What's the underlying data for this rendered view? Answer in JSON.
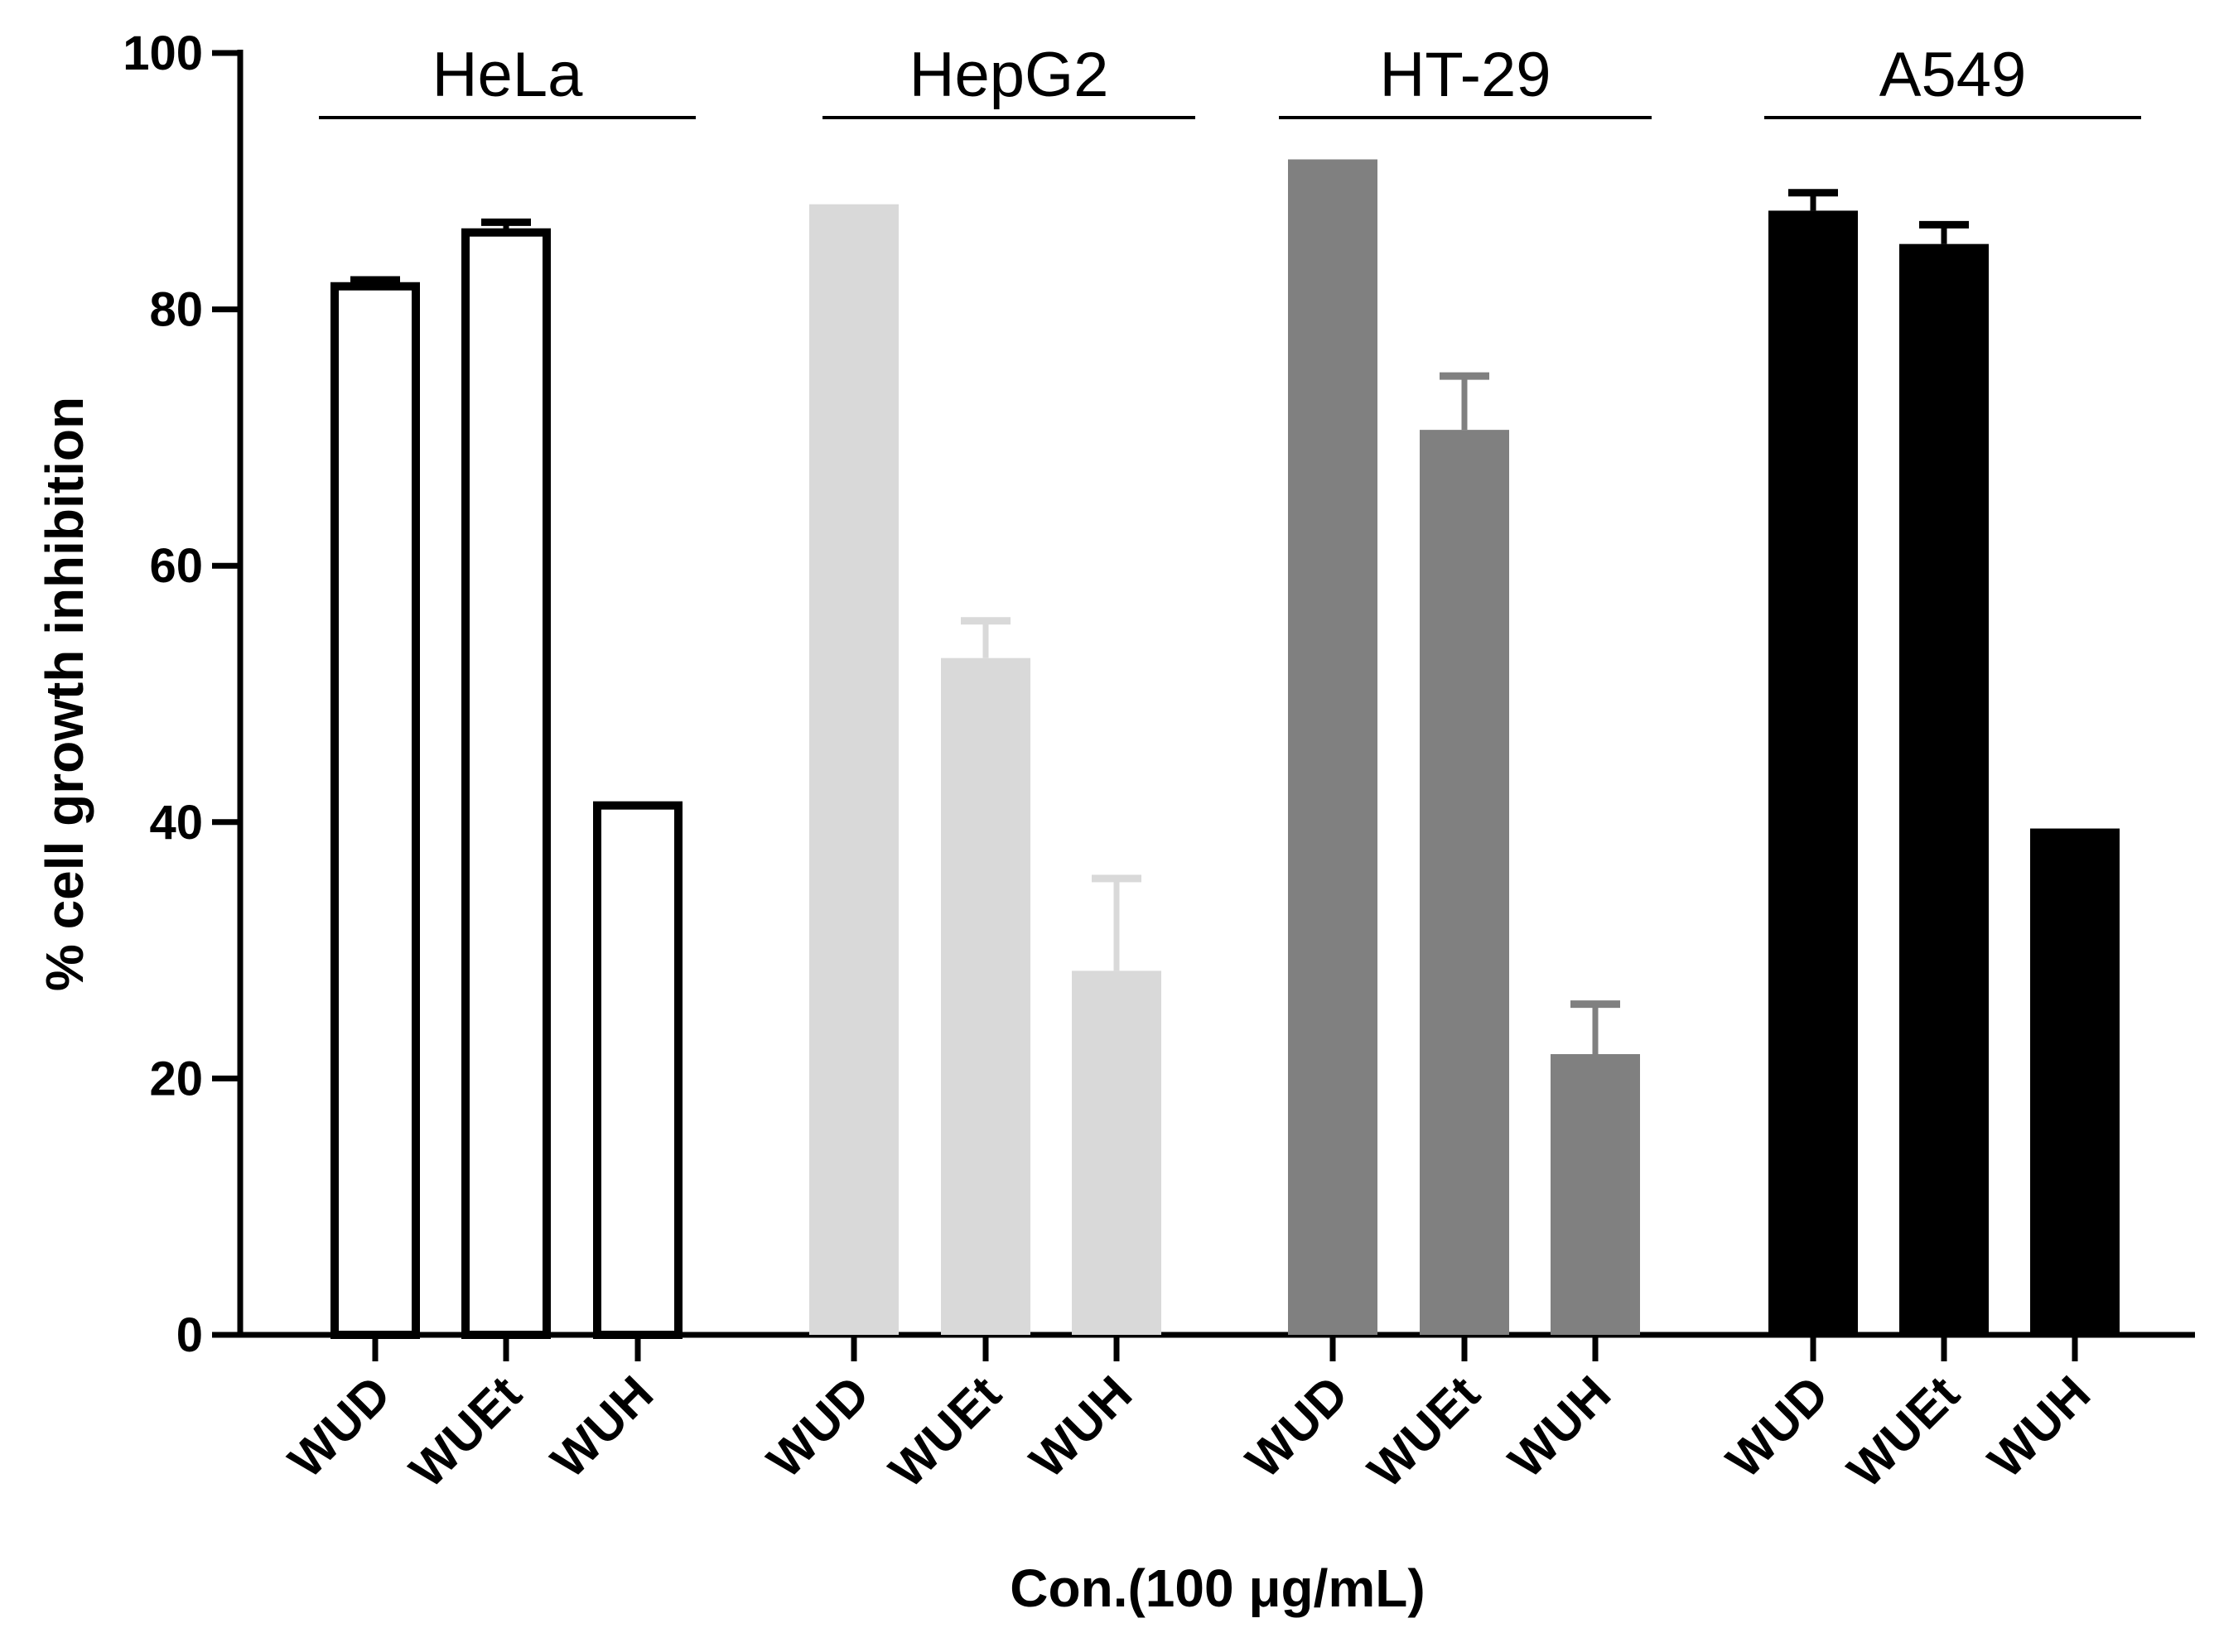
{
  "chart_data": {
    "type": "bar",
    "title": "",
    "xlabel": "Con.(100 μg/mL)",
    "ylabel": "%  cell growth inhibition",
    "ylim": [
      0,
      100
    ],
    "yticks": [
      "0",
      "20",
      "40",
      "60",
      "80",
      "100"
    ],
    "grid": false,
    "legend": "none",
    "groups": [
      {
        "name": "HeLa",
        "style": "outline",
        "color": "#000000",
        "bars": [
          {
            "label": "WUD",
            "value": 81.8,
            "error": 0.5
          },
          {
            "label": "WUEt",
            "value": 86.0,
            "error": 0.8
          },
          {
            "label": "WUH",
            "value": 41.3,
            "error": 0
          }
        ]
      },
      {
        "name": "HepG2",
        "style": "filled",
        "color": "#d9d9d9",
        "bars": [
          {
            "label": "WUD",
            "value": 88.2,
            "error": 0
          },
          {
            "label": "WUEt",
            "value": 52.8,
            "error": 2.9
          },
          {
            "label": "WUH",
            "value": 28.4,
            "error": 7.2
          }
        ]
      },
      {
        "name": "HT-29",
        "style": "filled",
        "color": "#808080",
        "bars": [
          {
            "label": "WUD",
            "value": 91.7,
            "error": 0
          },
          {
            "label": "WUEt",
            "value": 70.6,
            "error": 4.2
          },
          {
            "label": "WUH",
            "value": 21.9,
            "error": 3.9
          }
        ]
      },
      {
        "name": "A549",
        "style": "filled",
        "color": "#000000",
        "bars": [
          {
            "label": "WUD",
            "value": 87.7,
            "error": 1.4
          },
          {
            "label": "WUEt",
            "value": 85.1,
            "error": 1.5
          },
          {
            "label": "WUH",
            "value": 39.5,
            "error": 0
          }
        ]
      }
    ]
  }
}
